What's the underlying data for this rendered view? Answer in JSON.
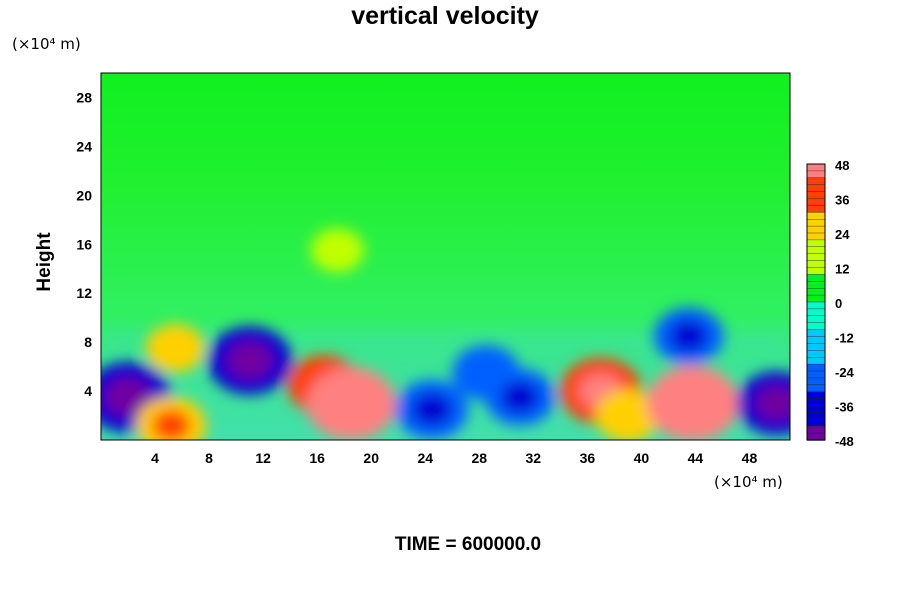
{
  "chart_data": {
    "type": "heatmap",
    "title": "vertical velocity",
    "ylabel": "Height",
    "y_unit_label": "(×10⁴ m)",
    "x_unit_label": "(×10⁴ m)",
    "xlim": [
      0,
      51
    ],
    "ylim": [
      0,
      30
    ],
    "x_ticks": [
      "4",
      "8",
      "12",
      "16",
      "20",
      "24",
      "28",
      "32",
      "36",
      "40",
      "44",
      "48"
    ],
    "y_ticks": [
      "4",
      "8",
      "12",
      "16",
      "20",
      "24",
      "28"
    ],
    "x_tick_values": [
      4,
      8,
      12,
      16,
      20,
      24,
      28,
      32,
      36,
      40,
      44,
      48
    ],
    "y_tick_values": [
      4,
      8,
      12,
      16,
      20,
      24,
      28
    ],
    "colorbar": {
      "ticks": [
        "48",
        "36",
        "24",
        "12",
        "0",
        "-12",
        "-24",
        "-36",
        "-48"
      ],
      "tick_values": [
        48,
        36,
        24,
        12,
        0,
        -12,
        -24,
        -36,
        -48
      ],
      "range": [
        -48,
        48
      ],
      "colors": [
        "#7000a0",
        "#0000d0",
        "#0060ff",
        "#00c8ff",
        "#00ffc8",
        "#00f020",
        "#c0ff00",
        "#ffd000",
        "#ff4000",
        "#ff8080"
      ]
    },
    "features": [
      {
        "x": 2.0,
        "y": 3.5,
        "value": -42
      },
      {
        "x": 5.5,
        "y": 7.5,
        "value": 22
      },
      {
        "x": 5.2,
        "y": 1.2,
        "value": 30
      },
      {
        "x": 11.0,
        "y": 6.5,
        "value": -40
      },
      {
        "x": 16.5,
        "y": 4.5,
        "value": 32
      },
      {
        "x": 18.5,
        "y": 3.0,
        "value": 44
      },
      {
        "x": 24.5,
        "y": 2.5,
        "value": -32
      },
      {
        "x": 28.5,
        "y": 5.5,
        "value": -28
      },
      {
        "x": 31.0,
        "y": 3.5,
        "value": -30
      },
      {
        "x": 37.0,
        "y": 4.0,
        "value": 38
      },
      {
        "x": 39.0,
        "y": 2.0,
        "value": 26
      },
      {
        "x": 43.8,
        "y": 3.0,
        "value": 46
      },
      {
        "x": 43.5,
        "y": 8.5,
        "value": -30
      },
      {
        "x": 50.0,
        "y": 3.0,
        "value": -36
      },
      {
        "x": 17.5,
        "y": 15.5,
        "value": 18
      }
    ]
  },
  "footer": {
    "time_label": "TIME = 600000.0"
  }
}
